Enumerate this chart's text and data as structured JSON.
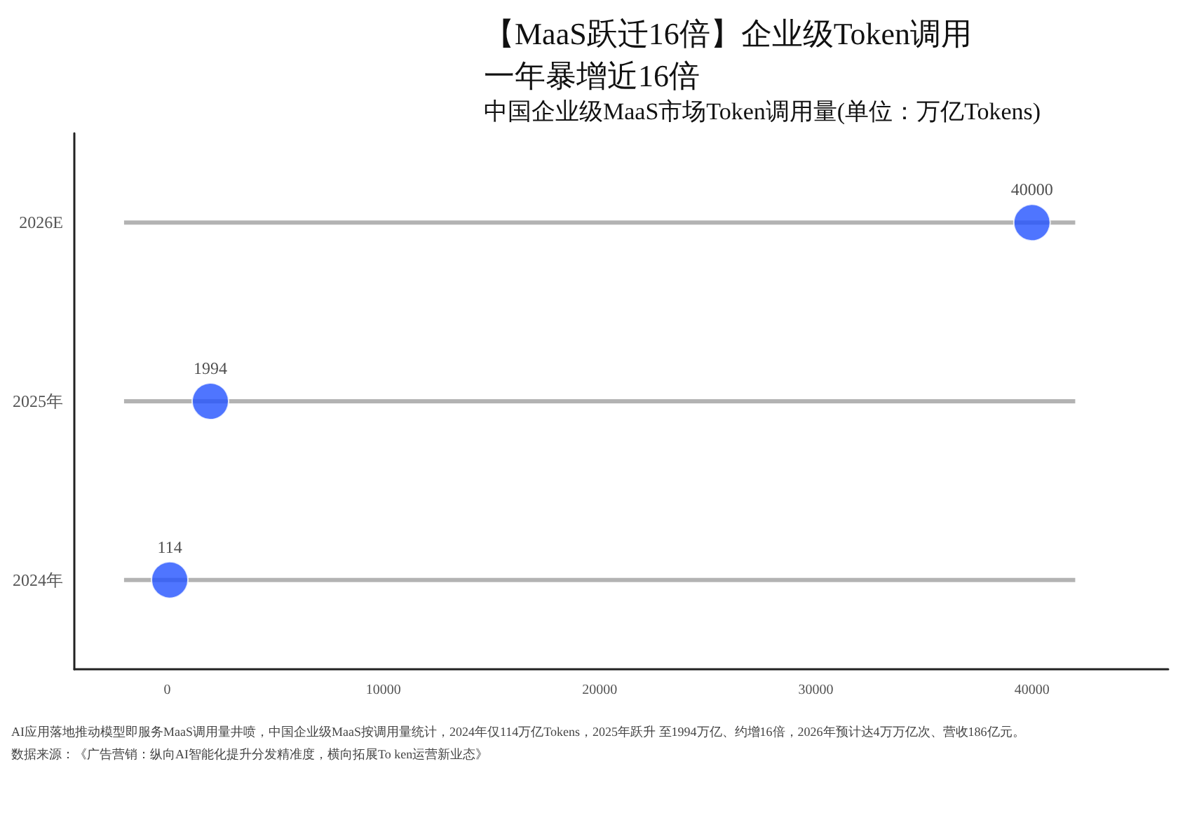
{
  "chart_data": {
    "type": "scatter",
    "orientation": "horizontal",
    "title": "【MaaS跃迁16倍】企业级Token调用一年暴增近16倍",
    "subtitle": "中国企业级MaaS市场Token调用量(单位：万亿Tokens)",
    "categories": [
      "2026E",
      "2025年",
      "2024年"
    ],
    "series": [
      {
        "type": "bar",
        "color": "#b3b3b3",
        "base": [
          -2000,
          -2000,
          -2000
        ],
        "values": [
          44000,
          44000,
          44000
        ]
      },
      {
        "color": "#2352ff",
        "values": [
          40000,
          1994,
          114
        ],
        "value_labels": [
          "40000",
          "1994",
          "114"
        ]
      }
    ],
    "xlim": [
      -4300,
      46300
    ],
    "xticks": [
      0,
      10000,
      20000,
      30000,
      40000
    ],
    "grid": false,
    "marker": "circle",
    "annotations": [
      "AI应用落地推动模型即服务MaaS调用量井喷，中国企业级MaaS按调用量统计，2024年仅114万亿Tokens，2025年跃升 至1994万亿、约增16倍，2026年预计达4万万亿次、营收186亿元。",
      "数据来源：《广告营销：纵向AI智能化提升分发精准度，横向拓展To ken运营新业态》"
    ]
  }
}
